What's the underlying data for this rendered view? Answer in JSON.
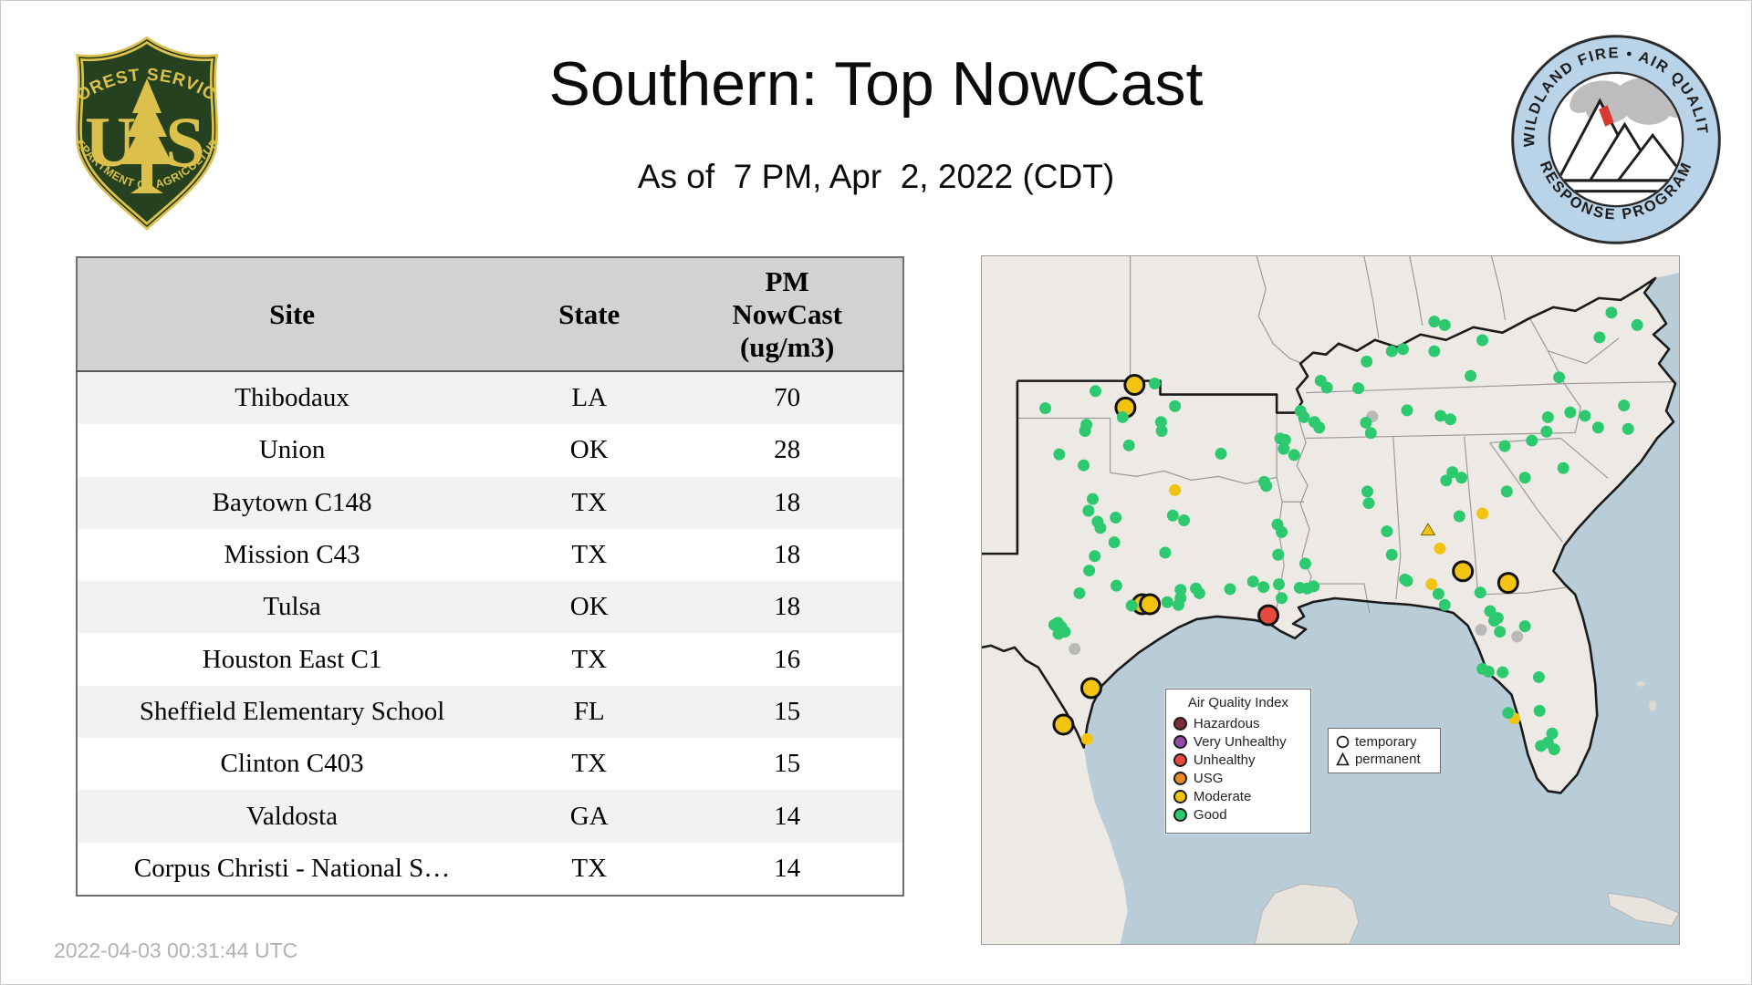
{
  "header": {
    "title": "Southern: Top NowCast",
    "subtitle": "As of  7 PM, Apr  2, 2022 (CDT)",
    "left_logo": {
      "top_text": "FOREST SERVICE",
      "us_left": "U",
      "us_right": "S",
      "bottom_text": "DEPARTMENT OF AGRICULTURE",
      "field_color": "#25411f",
      "gold_color": "#dcc04c"
    },
    "right_logo": {
      "top_text": "WILDLAND FIRE • AIR QUALITY",
      "bottom_text": "RESPONSE PROGRAM",
      "ring_color": "#b9d3e8"
    }
  },
  "table": {
    "columns": {
      "site": "Site",
      "state": "State",
      "pm": "PM\nNowCast\n(ug/m3)"
    },
    "rows": [
      {
        "site": "Thibodaux",
        "state": "LA",
        "value": "70"
      },
      {
        "site": "Union",
        "state": "OK",
        "value": "28"
      },
      {
        "site": "Baytown C148",
        "state": "TX",
        "value": "18"
      },
      {
        "site": "Mission C43",
        "state": "TX",
        "value": "18"
      },
      {
        "site": "Tulsa",
        "state": "OK",
        "value": "18"
      },
      {
        "site": "Houston East C1",
        "state": "TX",
        "value": "16"
      },
      {
        "site": "Sheffield Elementary School",
        "state": "FL",
        "value": "15"
      },
      {
        "site": "Clinton C403",
        "state": "TX",
        "value": "15"
      },
      {
        "site": "Valdosta",
        "state": "GA",
        "value": "14"
      },
      {
        "site": "Corpus Christi - National S…",
        "state": "TX",
        "value": "14"
      }
    ]
  },
  "footer": {
    "timestamp": "2022-04-03 00:31:44 UTC"
  },
  "map": {
    "colors": {
      "hazardous": "#7d2b38",
      "very_unhealthy": "#9648a8",
      "unhealthy": "#e8493d",
      "usg": "#e78b28",
      "moderate": "#f2c411",
      "good": "#2dc96f",
      "gray": "#b9b9b9",
      "water": "#b9cdd9",
      "land": "#edeae5"
    },
    "legend": {
      "title": "Air Quality Index",
      "items": [
        {
          "label": "Hazardous",
          "color": "#7d2b38"
        },
        {
          "label": "Very Unhealthy",
          "color": "#9648a8"
        },
        {
          "label": "Unhealthy",
          "color": "#e8493d"
        },
        {
          "label": "USG",
          "color": "#e78b28"
        },
        {
          "label": "Moderate",
          "color": "#f2c411"
        },
        {
          "label": "Good",
          "color": "#2dc96f"
        }
      ]
    },
    "marker_legend": {
      "temporary": "temporary",
      "permanent": "permanent"
    },
    "sites_note": "each site = [x_percent, y_percent, marker(L=large temporary circle, s=small permanent dot, t=small triangle), color_key]",
    "sites": [
      [
        21.9,
        18.7,
        "L",
        "moderate"
      ],
      [
        20.6,
        22.0,
        "L",
        "moderate"
      ],
      [
        23.0,
        50.6,
        "L",
        "moderate"
      ],
      [
        24.1,
        50.6,
        "L",
        "moderate"
      ],
      [
        15.7,
        62.8,
        "L",
        "moderate"
      ],
      [
        11.7,
        68.1,
        "L",
        "moderate"
      ],
      [
        69.0,
        45.8,
        "L",
        "moderate"
      ],
      [
        75.5,
        47.5,
        "L",
        "moderate"
      ],
      [
        41.1,
        52.2,
        "L",
        "unhealthy"
      ],
      [
        27.7,
        34.0,
        "s",
        "moderate"
      ],
      [
        71.8,
        37.4,
        "s",
        "moderate"
      ],
      [
        65.7,
        42.5,
        "s",
        "moderate"
      ],
      [
        64.5,
        47.7,
        "s",
        "moderate"
      ],
      [
        15.1,
        70.2,
        "s",
        "moderate"
      ],
      [
        76.4,
        67.2,
        "s",
        "moderate"
      ],
      [
        64.0,
        39.8,
        "t",
        "moderate"
      ],
      [
        71.6,
        54.3,
        "s",
        "gray"
      ],
      [
        76.8,
        55.3,
        "s",
        "gray"
      ],
      [
        13.3,
        57.1,
        "s",
        "gray"
      ],
      [
        56.0,
        23.3,
        "s",
        "gray"
      ],
      [
        16.3,
        19.6,
        "s",
        "good"
      ],
      [
        9.1,
        22.1,
        "s",
        "good"
      ],
      [
        15.0,
        24.5,
        "s",
        "good"
      ],
      [
        14.8,
        25.4,
        "s",
        "good"
      ],
      [
        20.2,
        23.4,
        "s",
        "good"
      ],
      [
        24.8,
        18.5,
        "s",
        "good"
      ],
      [
        27.7,
        21.8,
        "s",
        "good"
      ],
      [
        25.7,
        24.1,
        "s",
        "good"
      ],
      [
        25.8,
        25.4,
        "s",
        "good"
      ],
      [
        21.1,
        27.5,
        "s",
        "good"
      ],
      [
        11.1,
        28.8,
        "s",
        "good"
      ],
      [
        14.6,
        30.4,
        "s",
        "good"
      ],
      [
        34.3,
        28.7,
        "s",
        "good"
      ],
      [
        48.6,
        18.1,
        "s",
        "good"
      ],
      [
        45.7,
        22.5,
        "s",
        "good"
      ],
      [
        47.7,
        24.1,
        "s",
        "good"
      ],
      [
        42.8,
        26.5,
        "s",
        "good"
      ],
      [
        43.5,
        26.7,
        "s",
        "good"
      ],
      [
        43.3,
        28.0,
        "s",
        "good"
      ],
      [
        40.5,
        32.8,
        "s",
        "good"
      ],
      [
        15.9,
        35.3,
        "s",
        "good"
      ],
      [
        15.3,
        37.0,
        "s",
        "good"
      ],
      [
        16.6,
        38.6,
        "s",
        "good"
      ],
      [
        19.2,
        38.0,
        "s",
        "good"
      ],
      [
        27.4,
        37.7,
        "s",
        "good"
      ],
      [
        29.0,
        38.4,
        "s",
        "good"
      ],
      [
        42.4,
        39.0,
        "s",
        "good"
      ],
      [
        17.0,
        39.5,
        "s",
        "good"
      ],
      [
        19.0,
        41.6,
        "s",
        "good"
      ],
      [
        16.2,
        43.6,
        "s",
        "good"
      ],
      [
        15.4,
        45.7,
        "s",
        "good"
      ],
      [
        14.0,
        49.0,
        "s",
        "good"
      ],
      [
        19.3,
        47.9,
        "s",
        "good"
      ],
      [
        10.9,
        53.3,
        "s",
        "good"
      ],
      [
        11.4,
        53.9,
        "s",
        "good"
      ],
      [
        11.9,
        54.6,
        "s",
        "good"
      ],
      [
        11.0,
        54.9,
        "s",
        "good"
      ],
      [
        10.4,
        53.6,
        "s",
        "good"
      ],
      [
        21.5,
        50.8,
        "s",
        "good"
      ],
      [
        26.6,
        50.3,
        "s",
        "good"
      ],
      [
        28.5,
        49.7,
        "s",
        "good"
      ],
      [
        28.5,
        48.5,
        "s",
        "good"
      ],
      [
        30.7,
        48.3,
        "s",
        "good"
      ],
      [
        35.6,
        48.4,
        "s",
        "good"
      ],
      [
        26.3,
        43.1,
        "s",
        "good"
      ],
      [
        31.2,
        49.0,
        "s",
        "good"
      ],
      [
        28.2,
        50.7,
        "s",
        "good"
      ],
      [
        38.9,
        47.3,
        "s",
        "good"
      ],
      [
        40.4,
        48.1,
        "s",
        "good"
      ],
      [
        42.6,
        47.7,
        "s",
        "good"
      ],
      [
        45.6,
        48.2,
        "s",
        "good"
      ],
      [
        46.7,
        48.3,
        "s",
        "good"
      ],
      [
        47.6,
        48.0,
        "s",
        "good"
      ],
      [
        43.0,
        49.7,
        "s",
        "good"
      ],
      [
        40.8,
        33.4,
        "s",
        "good"
      ],
      [
        43.0,
        40.1,
        "s",
        "good"
      ],
      [
        42.5,
        43.4,
        "s",
        "good"
      ],
      [
        46.4,
        44.7,
        "s",
        "good"
      ],
      [
        48.4,
        24.9,
        "s",
        "good"
      ],
      [
        46.2,
        23.4,
        "s",
        "good"
      ],
      [
        49.5,
        19.1,
        "s",
        "good"
      ],
      [
        54.0,
        19.2,
        "s",
        "good"
      ],
      [
        55.2,
        15.3,
        "s",
        "good"
      ],
      [
        58.8,
        13.8,
        "s",
        "good"
      ],
      [
        60.4,
        13.5,
        "s",
        "good"
      ],
      [
        64.9,
        13.8,
        "s",
        "good"
      ],
      [
        55.1,
        24.2,
        "s",
        "good"
      ],
      [
        55.8,
        25.7,
        "s",
        "good"
      ],
      [
        61.0,
        22.4,
        "s",
        "good"
      ],
      [
        70.1,
        17.4,
        "s",
        "good"
      ],
      [
        71.8,
        12.2,
        "s",
        "good"
      ],
      [
        64.9,
        9.5,
        "s",
        "good"
      ],
      [
        66.4,
        10.0,
        "s",
        "good"
      ],
      [
        90.3,
        8.2,
        "s",
        "good"
      ],
      [
        94.0,
        10.0,
        "s",
        "good"
      ],
      [
        88.6,
        11.8,
        "s",
        "good"
      ],
      [
        82.8,
        17.6,
        "s",
        "good"
      ],
      [
        84.4,
        22.7,
        "s",
        "good"
      ],
      [
        86.5,
        23.2,
        "s",
        "good"
      ],
      [
        88.4,
        24.9,
        "s",
        "good"
      ],
      [
        92.1,
        21.7,
        "s",
        "good"
      ],
      [
        92.7,
        25.1,
        "s",
        "good"
      ],
      [
        81.2,
        23.4,
        "s",
        "good"
      ],
      [
        81.0,
        25.5,
        "s",
        "good"
      ],
      [
        83.4,
        30.8,
        "s",
        "good"
      ],
      [
        65.8,
        23.2,
        "s",
        "good"
      ],
      [
        67.2,
        23.7,
        "s",
        "good"
      ],
      [
        67.5,
        31.4,
        "s",
        "good"
      ],
      [
        66.6,
        32.6,
        "s",
        "good"
      ],
      [
        68.8,
        32.2,
        "s",
        "good"
      ],
      [
        75.0,
        27.6,
        "s",
        "good"
      ],
      [
        78.9,
        26.8,
        "s",
        "good"
      ],
      [
        77.9,
        32.2,
        "s",
        "good"
      ],
      [
        75.3,
        34.2,
        "s",
        "good"
      ],
      [
        55.3,
        34.2,
        "s",
        "good"
      ],
      [
        55.5,
        35.9,
        "s",
        "good"
      ],
      [
        58.1,
        40.0,
        "s",
        "good"
      ],
      [
        61.0,
        47.2,
        "s",
        "good"
      ],
      [
        68.5,
        37.8,
        "s",
        "good"
      ],
      [
        60.7,
        47.0,
        "s",
        "good"
      ],
      [
        58.8,
        43.4,
        "s",
        "good"
      ],
      [
        66.4,
        50.7,
        "s",
        "good"
      ],
      [
        65.5,
        49.1,
        "s",
        "good"
      ],
      [
        71.5,
        48.9,
        "s",
        "good"
      ],
      [
        72.9,
        51.6,
        "s",
        "good"
      ],
      [
        73.5,
        53.0,
        "s",
        "good"
      ],
      [
        74.0,
        52.6,
        "s",
        "good"
      ],
      [
        74.3,
        54.6,
        "s",
        "good"
      ],
      [
        77.9,
        53.8,
        "s",
        "good"
      ],
      [
        71.8,
        60.0,
        "s",
        "good"
      ],
      [
        72.7,
        60.4,
        "s",
        "good"
      ],
      [
        74.7,
        60.5,
        "s",
        "good"
      ],
      [
        79.9,
        61.2,
        "s",
        "good"
      ],
      [
        75.5,
        66.4,
        "s",
        "good"
      ],
      [
        80.0,
        66.1,
        "s",
        "good"
      ],
      [
        81.8,
        69.4,
        "s",
        "good"
      ],
      [
        81.2,
        70.7,
        "s",
        "good"
      ],
      [
        82.1,
        71.7,
        "s",
        "good"
      ],
      [
        80.2,
        71.2,
        "s",
        "good"
      ],
      [
        44.8,
        28.9,
        "s",
        "good"
      ]
    ]
  }
}
